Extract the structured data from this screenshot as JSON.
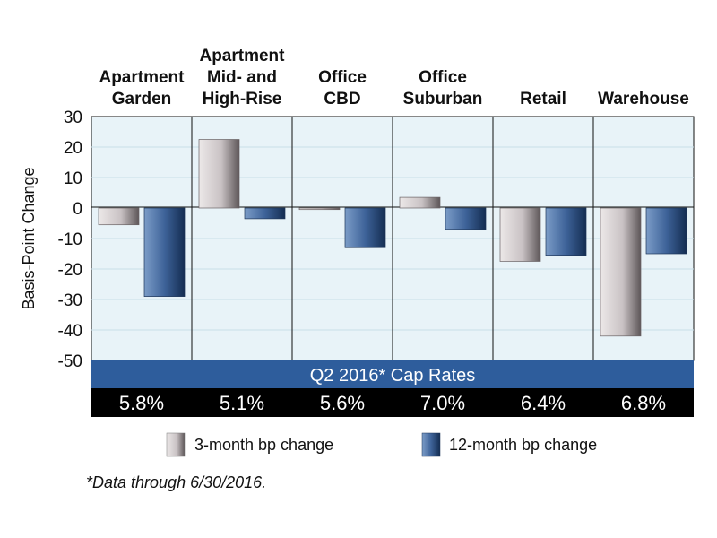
{
  "chart_data": {
    "type": "bar",
    "categories": [
      [
        "Apartment",
        "Garden"
      ],
      [
        "Apartment",
        "Mid- and",
        "High-Rise"
      ],
      [
        "Office",
        "CBD"
      ],
      [
        "Office",
        "Suburban"
      ],
      [
        "Retail"
      ],
      [
        "Warehouse"
      ]
    ],
    "series": [
      {
        "name": "3-month bp change",
        "values": [
          -5.5,
          22.5,
          -0.5,
          3.5,
          -17.5,
          -42
        ]
      },
      {
        "name": "12-month bp change",
        "values": [
          -29,
          -3.5,
          -13,
          -7,
          -15.5,
          -15
        ]
      }
    ],
    "ylabel": "Basis-Point Change",
    "ylim": [
      -50,
      30
    ],
    "yticks": [
      "30",
      "20",
      "10",
      "0",
      "-10",
      "-20",
      "-30",
      "-40",
      "-50"
    ],
    "band_title": "Q2 2016* Cap Rates",
    "cap_rates": [
      "5.8%",
      "5.1%",
      "5.6%",
      "7.0%",
      "6.4%",
      "6.8%"
    ],
    "footnote": "*Data through 6/30/2016.",
    "grid": true,
    "legend_position": "bottom",
    "colors": {
      "plot_background": "#e8f3f8",
      "gridline": "#c9dfe9",
      "band": "#2e5d9c",
      "cap_row": "#000000",
      "series_3m": "#b9b1b3",
      "series_12m": "#3a5f93"
    }
  }
}
